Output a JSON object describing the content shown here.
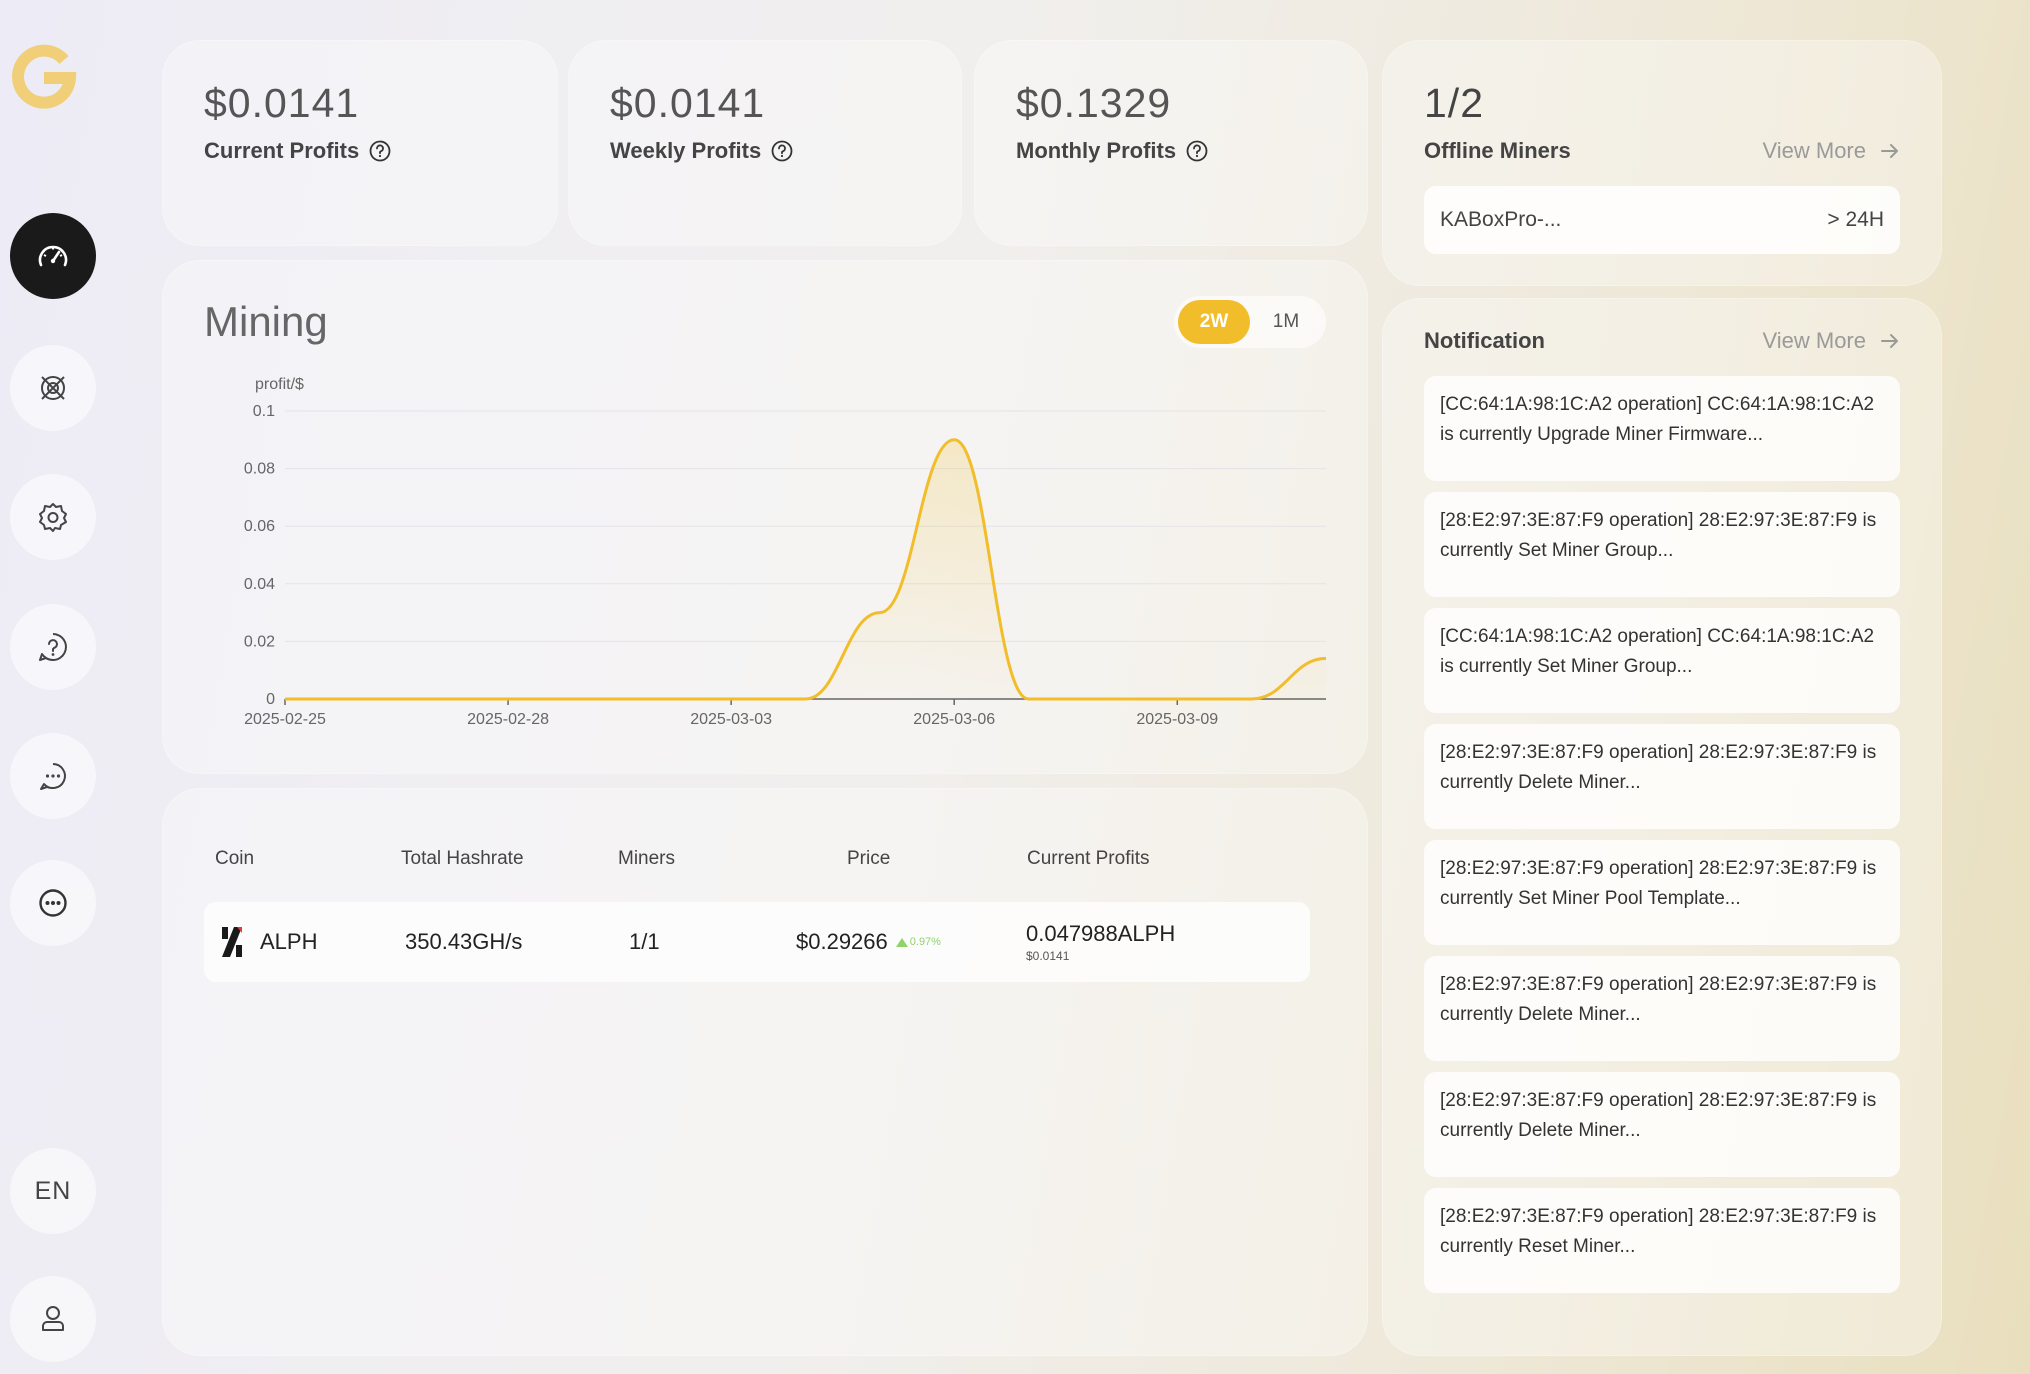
{
  "stats": [
    {
      "value": "$0.0141",
      "label": "Current Profits"
    },
    {
      "value": "$0.0141",
      "label": "Weekly Profits"
    },
    {
      "value": "$0.1329",
      "label": "Monthly Profits"
    }
  ],
  "offline": {
    "count": "1/2",
    "label": "Offline Miners",
    "view_more": "View More",
    "item_name": "KABoxPro-...",
    "item_duration": "> 24H"
  },
  "mining": {
    "title": "Mining",
    "ranges": [
      "2W",
      "1M"
    ],
    "selected_range": "2W"
  },
  "chart_data": {
    "type": "area",
    "ylabel": "profit/$",
    "xlabel": "",
    "ylim": [
      0,
      0.1
    ],
    "y_ticks": [
      "0",
      "0.02",
      "0.04",
      "0.06",
      "0.08",
      "0.1"
    ],
    "x_tick_labels": [
      "2025-02-25",
      "2025-02-28",
      "2025-03-03",
      "2025-03-06",
      "2025-03-09"
    ],
    "x": [
      "2025-02-25",
      "2025-02-26",
      "2025-02-27",
      "2025-02-28",
      "2025-03-01",
      "2025-03-02",
      "2025-03-03",
      "2025-03-04",
      "2025-03-05",
      "2025-03-06",
      "2025-03-07",
      "2025-03-08",
      "2025-03-09",
      "2025-03-10",
      "2025-03-11"
    ],
    "series": [
      {
        "values": [
          0,
          0,
          0,
          0,
          0,
          0,
          0,
          0,
          0.03,
          0.09,
          0,
          0,
          0,
          0,
          0.0141
        ]
      }
    ],
    "color": "#f2bd2a",
    "grid": true
  },
  "table": {
    "headers": {
      "coin": "Coin",
      "hashrate": "Total Hashrate",
      "miners": "Miners",
      "price": "Price",
      "profits": "Current Profits"
    },
    "rows": [
      {
        "coin": "ALPH",
        "hashrate": "350.43GH/s",
        "miners": "1/1",
        "price": "$0.29266",
        "change": "0.97%",
        "profit": "0.047988ALPH",
        "profit_usd": "$0.0141"
      }
    ]
  },
  "notification": {
    "title": "Notification",
    "view_more": "View More",
    "items": [
      "[CC:64:1A:98:1C:A2 operation] CC:64:1A:98:1C:A2 is currently Upgrade Miner Firmware...",
      "[28:E2:97:3E:87:F9 operation] 28:E2:97:3E:87:F9 is currently Set Miner Group...",
      "[CC:64:1A:98:1C:A2 operation] CC:64:1A:98:1C:A2 is currently Set Miner Group...",
      "[28:E2:97:3E:87:F9 operation] 28:E2:97:3E:87:F9 is currently Delete Miner...",
      "[28:E2:97:3E:87:F9 operation] 28:E2:97:3E:87:F9 is currently Set Miner Pool Template...",
      "[28:E2:97:3E:87:F9 operation] 28:E2:97:3E:87:F9 is currently Delete Miner...",
      "[28:E2:97:3E:87:F9 operation] 28:E2:97:3E:87:F9 is currently Delete Miner...",
      "[28:E2:97:3E:87:F9 operation] 28:E2:97:3E:87:F9 is currently Reset Miner..."
    ]
  },
  "sidebar": {
    "language": "EN",
    "icons": [
      "dashboard-icon",
      "mining-pool-icon",
      "settings-icon",
      "help-icon",
      "chat-icon",
      "more-icon",
      "user-icon"
    ]
  },
  "colors": {
    "accent": "#f2bd2a",
    "up": "#8fd36b",
    "active_nav": "#1a1a1a"
  }
}
